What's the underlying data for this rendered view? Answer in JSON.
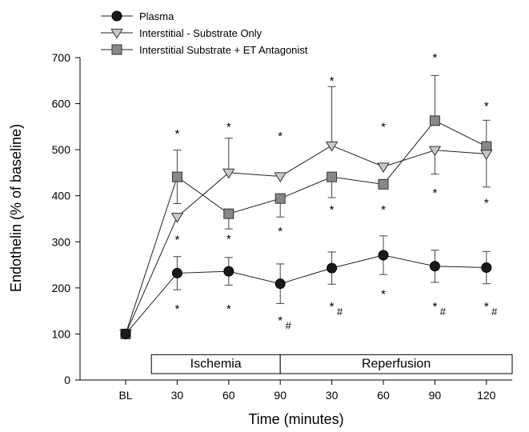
{
  "chart_data": {
    "type": "line",
    "title": "",
    "xlabel": "Time (minutes)",
    "ylabel": "Endothelin (% of baseline)",
    "ylim": [
      0,
      700
    ],
    "yticks": [
      0,
      100,
      200,
      300,
      400,
      500,
      600,
      700
    ],
    "categories": [
      "BL",
      "30",
      "60",
      "90",
      "30",
      "60",
      "90",
      "120"
    ],
    "legend_position": "top-left",
    "grid": false,
    "phases": [
      {
        "label": "Ischemia",
        "from": 0.5,
        "to": 3
      },
      {
        "label": "Reperfusion",
        "from": 3,
        "to": 7.5
      }
    ],
    "series": [
      {
        "name": "Plasma",
        "marker": "circle",
        "color": "#1a1a1a",
        "values": [
          100,
          232,
          236,
          209,
          243,
          271,
          247,
          244
        ],
        "error_high": [
          0,
          36,
          30,
          43,
          35,
          42,
          35,
          35
        ],
        "error_low": [
          0,
          36,
          30,
          43,
          35,
          42,
          35,
          35
        ]
      },
      {
        "name": "Interstitial -  Substrate Only",
        "marker": "triangle-down",
        "color": "#c8c8c8",
        "values": [
          100,
          354,
          450,
          442,
          509,
          463,
          499,
          491
        ],
        "error_high": [
          0,
          0,
          75,
          0,
          128,
          0,
          0,
          73
        ],
        "error_low": [
          0,
          0,
          0,
          0,
          0,
          0,
          52,
          72
        ]
      },
      {
        "name": "Interstitial Substrate + ET Antagonist",
        "marker": "square",
        "color": "#888888",
        "values": [
          100,
          441,
          361,
          394,
          441,
          425,
          563,
          507
        ],
        "error_high": [
          0,
          58,
          0,
          0,
          0,
          0,
          98,
          0
        ],
        "error_low": [
          0,
          58,
          33,
          40,
          45,
          0,
          0,
          0
        ]
      }
    ],
    "annotations": [
      {
        "x": 1,
        "y": 540,
        "text": "*"
      },
      {
        "x": 1,
        "y": 310,
        "text": "*"
      },
      {
        "x": 1,
        "y": 160,
        "text": "*"
      },
      {
        "x": 2,
        "y": 555,
        "text": "*"
      },
      {
        "x": 2,
        "y": 312,
        "text": "*"
      },
      {
        "x": 2,
        "y": 160,
        "text": "*"
      },
      {
        "x": 3,
        "y": 535,
        "text": "*"
      },
      {
        "x": 3,
        "y": 328,
        "text": "*"
      },
      {
        "x": 3,
        "y": 135,
        "text": "*",
        "suffix": "#"
      },
      {
        "x": 4,
        "y": 655,
        "text": "*"
      },
      {
        "x": 4,
        "y": 375,
        "text": "*"
      },
      {
        "x": 4,
        "y": 165,
        "text": "*",
        "suffix": "#"
      },
      {
        "x": 5,
        "y": 555,
        "text": "*"
      },
      {
        "x": 5,
        "y": 375,
        "text": "*"
      },
      {
        "x": 5,
        "y": 192,
        "text": "*"
      },
      {
        "x": 6,
        "y": 705,
        "text": "*"
      },
      {
        "x": 6,
        "y": 412,
        "text": "*"
      },
      {
        "x": 6,
        "y": 165,
        "text": "*",
        "suffix": "#"
      },
      {
        "x": 7,
        "y": 600,
        "text": "*"
      },
      {
        "x": 7,
        "y": 390,
        "text": "*"
      },
      {
        "x": 7,
        "y": 165,
        "text": "*",
        "suffix": "#"
      }
    ]
  }
}
